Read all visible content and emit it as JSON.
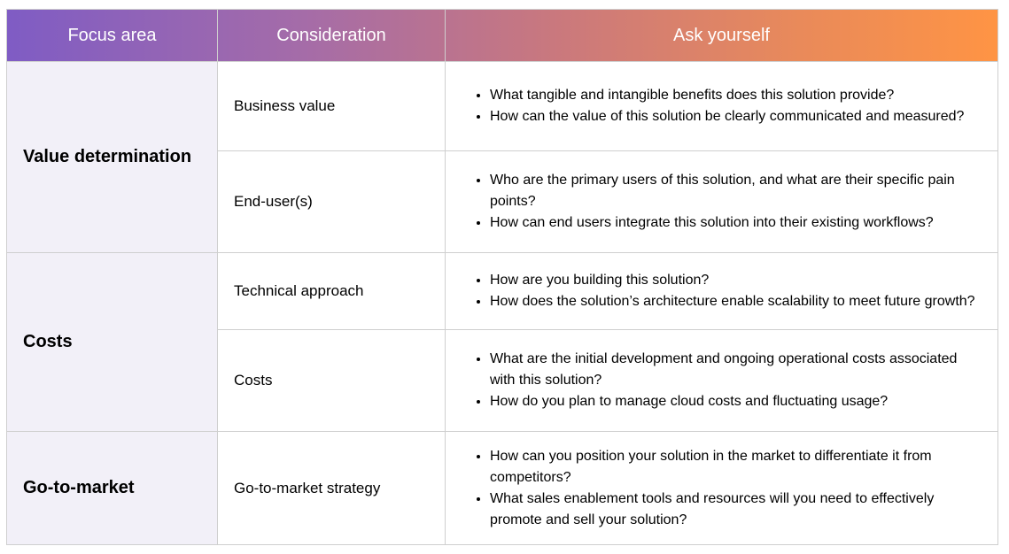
{
  "header": {
    "focus_area": "Focus area",
    "consideration": "Consideration",
    "ask_yourself": "Ask yourself"
  },
  "colors": {
    "header_gradient_start": "#7F5CC4",
    "header_gradient_end": "#FF9444",
    "focus_bg": "#F2F0F8"
  },
  "groups": [
    {
      "focus": "Value determination",
      "rows": [
        {
          "consideration": "Business value",
          "questions": [
            "What tangible and intangible benefits does this solution provide?",
            "How can the value of this solution be clearly communicated and measured?"
          ]
        },
        {
          "consideration": "End-user(s)",
          "questions": [
            "Who are the primary users of this solution, and what are their specific pain points?",
            "How can end users integrate this solution into their existing workflows?"
          ]
        }
      ]
    },
    {
      "focus": "Costs",
      "rows": [
        {
          "consideration": "Technical approach",
          "questions": [
            "How are you building this solution?",
            "How does the solution’s architecture enable scalability to meet future growth?"
          ]
        },
        {
          "consideration": "Costs",
          "questions": [
            "What are the initial development and ongoing operational costs associated with this solution?",
            "How do you plan to manage cloud costs and fluctuating usage?"
          ]
        }
      ]
    },
    {
      "focus": "Go-to-market",
      "rows": [
        {
          "consideration": "Go-to-market strategy",
          "questions": [
            "How can you position your solution in the market to differentiate it from competitors?",
            "What sales enablement tools and resources will you need to effectively promote and sell your solution?"
          ]
        }
      ]
    }
  ]
}
